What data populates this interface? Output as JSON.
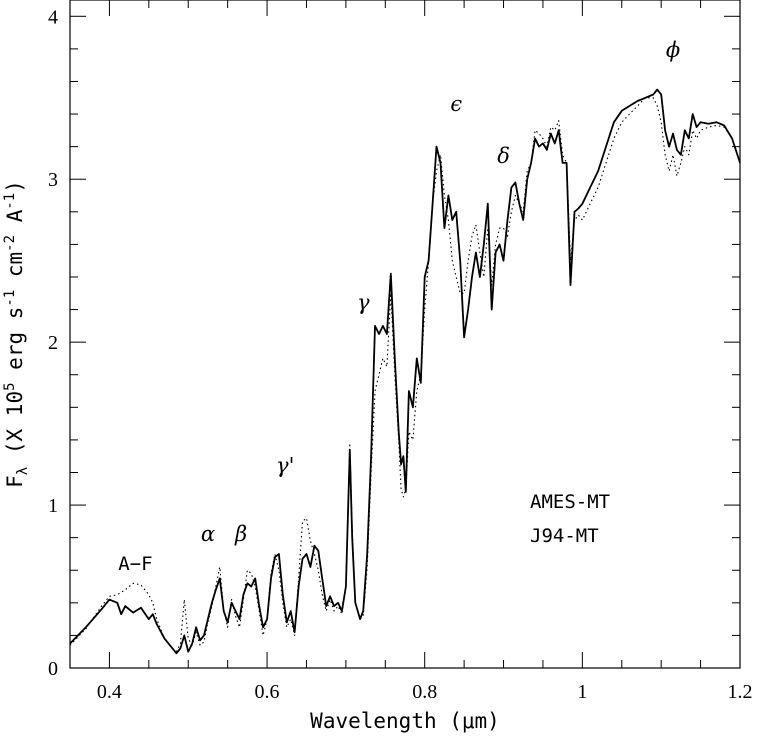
{
  "chart_data": {
    "type": "line",
    "xlabel": "Wavelength (μm)",
    "ylabel": "F",
    "ylabel_sub": "λ",
    "ylabel_rest": " (X 10",
    "ylabel_exp": "5",
    "ylabel_unit": " erg s",
    "ylabel_unit_exp1": "-1",
    "ylabel_unit2": " cm",
    "ylabel_unit_exp2": "-2",
    "ylabel_unit3": " A",
    "ylabel_unit_exp3": "-1",
    "ylabel_close": ")",
    "xlim": [
      0.35,
      1.2
    ],
    "ylim": [
      0,
      4.1
    ],
    "x_ticks": [
      0.4,
      0.6,
      0.8,
      1.0,
      1.2
    ],
    "x_tick_labels": [
      "0.4",
      "0.6",
      "0.8",
      "1",
      "1.2"
    ],
    "y_ticks": [
      0,
      1,
      2,
      3,
      4
    ],
    "y_tick_labels": [
      "0",
      "1",
      "2",
      "3",
      "4"
    ],
    "legend_position": "right-middle",
    "series": [
      {
        "name": "AMES-MT",
        "style": "solid",
        "color": "#000000",
        "points": [
          [
            0.35,
            0.15
          ],
          [
            0.37,
            0.25
          ],
          [
            0.39,
            0.36
          ],
          [
            0.4,
            0.42
          ],
          [
            0.41,
            0.4
          ],
          [
            0.415,
            0.33
          ],
          [
            0.42,
            0.38
          ],
          [
            0.43,
            0.34
          ],
          [
            0.44,
            0.37
          ],
          [
            0.45,
            0.3
          ],
          [
            0.455,
            0.33
          ],
          [
            0.46,
            0.27
          ],
          [
            0.47,
            0.18
          ],
          [
            0.48,
            0.12
          ],
          [
            0.485,
            0.09
          ],
          [
            0.49,
            0.12
          ],
          [
            0.495,
            0.2
          ],
          [
            0.5,
            0.1
          ],
          [
            0.505,
            0.15
          ],
          [
            0.51,
            0.25
          ],
          [
            0.515,
            0.17
          ],
          [
            0.52,
            0.2
          ],
          [
            0.525,
            0.3
          ],
          [
            0.53,
            0.4
          ],
          [
            0.535,
            0.48
          ],
          [
            0.54,
            0.55
          ],
          [
            0.545,
            0.35
          ],
          [
            0.55,
            0.28
          ],
          [
            0.555,
            0.4
          ],
          [
            0.56,
            0.35
          ],
          [
            0.565,
            0.3
          ],
          [
            0.57,
            0.45
          ],
          [
            0.575,
            0.52
          ],
          [
            0.58,
            0.5
          ],
          [
            0.585,
            0.55
          ],
          [
            0.59,
            0.38
          ],
          [
            0.595,
            0.25
          ],
          [
            0.6,
            0.3
          ],
          [
            0.605,
            0.55
          ],
          [
            0.61,
            0.68
          ],
          [
            0.615,
            0.7
          ],
          [
            0.62,
            0.45
          ],
          [
            0.625,
            0.28
          ],
          [
            0.63,
            0.35
          ],
          [
            0.635,
            0.22
          ],
          [
            0.64,
            0.5
          ],
          [
            0.645,
            0.67
          ],
          [
            0.65,
            0.7
          ],
          [
            0.655,
            0.62
          ],
          [
            0.66,
            0.75
          ],
          [
            0.665,
            0.72
          ],
          [
            0.67,
            0.55
          ],
          [
            0.675,
            0.38
          ],
          [
            0.68,
            0.44
          ],
          [
            0.685,
            0.38
          ],
          [
            0.69,
            0.4
          ],
          [
            0.695,
            0.35
          ],
          [
            0.7,
            0.5
          ],
          [
            0.705,
            1.34
          ],
          [
            0.708,
            0.8
          ],
          [
            0.712,
            0.4
          ],
          [
            0.718,
            0.3
          ],
          [
            0.722,
            0.35
          ],
          [
            0.727,
            0.7
          ],
          [
            0.732,
            1.3
          ],
          [
            0.737,
            2.1
          ],
          [
            0.742,
            2.05
          ],
          [
            0.747,
            2.1
          ],
          [
            0.752,
            2.05
          ],
          [
            0.757,
            2.42
          ],
          [
            0.762,
            1.9
          ],
          [
            0.767,
            1.45
          ],
          [
            0.77,
            1.25
          ],
          [
            0.773,
            1.3
          ],
          [
            0.776,
            1.08
          ],
          [
            0.78,
            1.7
          ],
          [
            0.785,
            1.6
          ],
          [
            0.79,
            1.9
          ],
          [
            0.795,
            1.75
          ],
          [
            0.8,
            2.4
          ],
          [
            0.805,
            2.5
          ],
          [
            0.81,
            2.85
          ],
          [
            0.815,
            3.2
          ],
          [
            0.82,
            3.1
          ],
          [
            0.825,
            2.7
          ],
          [
            0.83,
            2.9
          ],
          [
            0.835,
            2.75
          ],
          [
            0.84,
            2.8
          ],
          [
            0.845,
            2.5
          ],
          [
            0.85,
            2.03
          ],
          [
            0.855,
            2.2
          ],
          [
            0.86,
            2.4
          ],
          [
            0.865,
            2.55
          ],
          [
            0.87,
            2.4
          ],
          [
            0.875,
            2.6
          ],
          [
            0.88,
            2.85
          ],
          [
            0.885,
            2.2
          ],
          [
            0.89,
            2.55
          ],
          [
            0.895,
            2.6
          ],
          [
            0.9,
            2.5
          ],
          [
            0.905,
            2.75
          ],
          [
            0.91,
            2.95
          ],
          [
            0.915,
            2.98
          ],
          [
            0.92,
            2.85
          ],
          [
            0.925,
            2.75
          ],
          [
            0.93,
            3.0
          ],
          [
            0.935,
            3.1
          ],
          [
            0.94,
            3.25
          ],
          [
            0.945,
            3.2
          ],
          [
            0.95,
            3.22
          ],
          [
            0.955,
            3.18
          ],
          [
            0.96,
            3.28
          ],
          [
            0.965,
            3.22
          ],
          [
            0.97,
            3.3
          ],
          [
            0.975,
            3.1
          ],
          [
            0.98,
            3.1
          ],
          [
            0.985,
            2.35
          ],
          [
            0.99,
            2.8
          ],
          [
            0.995,
            2.82
          ],
          [
            1.0,
            2.85
          ],
          [
            1.01,
            2.95
          ],
          [
            1.02,
            3.05
          ],
          [
            1.03,
            3.2
          ],
          [
            1.04,
            3.35
          ],
          [
            1.05,
            3.42
          ],
          [
            1.06,
            3.45
          ],
          [
            1.07,
            3.48
          ],
          [
            1.08,
            3.5
          ],
          [
            1.09,
            3.52
          ],
          [
            1.095,
            3.55
          ],
          [
            1.1,
            3.52
          ],
          [
            1.105,
            3.3
          ],
          [
            1.11,
            3.2
          ],
          [
            1.115,
            3.28
          ],
          [
            1.12,
            3.18
          ],
          [
            1.125,
            3.15
          ],
          [
            1.13,
            3.3
          ],
          [
            1.135,
            3.25
          ],
          [
            1.14,
            3.4
          ],
          [
            1.145,
            3.32
          ],
          [
            1.15,
            3.35
          ],
          [
            1.16,
            3.34
          ],
          [
            1.17,
            3.35
          ],
          [
            1.18,
            3.33
          ],
          [
            1.19,
            3.25
          ],
          [
            1.2,
            3.1
          ]
        ]
      },
      {
        "name": "J94-MT",
        "style": "dotted",
        "color": "#000000",
        "points": [
          [
            0.35,
            0.14
          ],
          [
            0.37,
            0.24
          ],
          [
            0.39,
            0.38
          ],
          [
            0.4,
            0.44
          ],
          [
            0.41,
            0.45
          ],
          [
            0.42,
            0.48
          ],
          [
            0.43,
            0.52
          ],
          [
            0.44,
            0.51
          ],
          [
            0.45,
            0.45
          ],
          [
            0.455,
            0.4
          ],
          [
            0.46,
            0.3
          ],
          [
            0.47,
            0.18
          ],
          [
            0.48,
            0.12
          ],
          [
            0.485,
            0.1
          ],
          [
            0.49,
            0.15
          ],
          [
            0.495,
            0.42
          ],
          [
            0.5,
            0.18
          ],
          [
            0.505,
            0.14
          ],
          [
            0.51,
            0.22
          ],
          [
            0.515,
            0.14
          ],
          [
            0.52,
            0.16
          ],
          [
            0.525,
            0.28
          ],
          [
            0.53,
            0.38
          ],
          [
            0.535,
            0.5
          ],
          [
            0.54,
            0.62
          ],
          [
            0.545,
            0.36
          ],
          [
            0.55,
            0.25
          ],
          [
            0.555,
            0.42
          ],
          [
            0.56,
            0.32
          ],
          [
            0.565,
            0.25
          ],
          [
            0.57,
            0.42
          ],
          [
            0.575,
            0.6
          ],
          [
            0.58,
            0.58
          ],
          [
            0.585,
            0.5
          ],
          [
            0.59,
            0.35
          ],
          [
            0.595,
            0.2
          ],
          [
            0.6,
            0.3
          ],
          [
            0.605,
            0.58
          ],
          [
            0.61,
            0.7
          ],
          [
            0.615,
            0.6
          ],
          [
            0.62,
            0.4
          ],
          [
            0.625,
            0.25
          ],
          [
            0.63,
            0.3
          ],
          [
            0.635,
            0.2
          ],
          [
            0.64,
            0.55
          ],
          [
            0.645,
            0.9
          ],
          [
            0.65,
            0.92
          ],
          [
            0.655,
            0.78
          ],
          [
            0.66,
            0.7
          ],
          [
            0.665,
            0.6
          ],
          [
            0.67,
            0.45
          ],
          [
            0.675,
            0.35
          ],
          [
            0.68,
            0.42
          ],
          [
            0.685,
            0.35
          ],
          [
            0.69,
            0.38
          ],
          [
            0.695,
            0.33
          ],
          [
            0.7,
            0.5
          ],
          [
            0.705,
            1.38
          ],
          [
            0.708,
            0.85
          ],
          [
            0.712,
            0.4
          ],
          [
            0.718,
            0.3
          ],
          [
            0.722,
            0.32
          ],
          [
            0.727,
            0.62
          ],
          [
            0.732,
            1.2
          ],
          [
            0.737,
            1.7
          ],
          [
            0.742,
            1.8
          ],
          [
            0.747,
            1.9
          ],
          [
            0.752,
            1.85
          ],
          [
            0.757,
            2.3
          ],
          [
            0.762,
            1.8
          ],
          [
            0.767,
            1.4
          ],
          [
            0.77,
            1.1
          ],
          [
            0.773,
            1.05
          ],
          [
            0.776,
            1.1
          ],
          [
            0.78,
            1.45
          ],
          [
            0.785,
            1.4
          ],
          [
            0.79,
            1.7
          ],
          [
            0.795,
            1.8
          ],
          [
            0.8,
            2.2
          ],
          [
            0.805,
            2.5
          ],
          [
            0.81,
            2.85
          ],
          [
            0.815,
            3.05
          ],
          [
            0.82,
            3.15
          ],
          [
            0.825,
            2.9
          ],
          [
            0.83,
            2.75
          ],
          [
            0.835,
            2.5
          ],
          [
            0.84,
            2.4
          ],
          [
            0.845,
            2.3
          ],
          [
            0.85,
            2.3
          ],
          [
            0.855,
            2.5
          ],
          [
            0.86,
            2.65
          ],
          [
            0.865,
            2.72
          ],
          [
            0.87,
            2.55
          ],
          [
            0.875,
            2.4
          ],
          [
            0.88,
            2.7
          ],
          [
            0.885,
            2.35
          ],
          [
            0.89,
            2.6
          ],
          [
            0.895,
            2.7
          ],
          [
            0.9,
            2.7
          ],
          [
            0.905,
            2.65
          ],
          [
            0.91,
            2.8
          ],
          [
            0.915,
            2.9
          ],
          [
            0.92,
            2.85
          ],
          [
            0.925,
            2.8
          ],
          [
            0.93,
            3.05
          ],
          [
            0.935,
            3.1
          ],
          [
            0.94,
            3.3
          ],
          [
            0.945,
            3.28
          ],
          [
            0.95,
            3.25
          ],
          [
            0.955,
            3.2
          ],
          [
            0.96,
            3.32
          ],
          [
            0.965,
            3.3
          ],
          [
            0.97,
            3.36
          ],
          [
            0.975,
            3.15
          ],
          [
            0.98,
            3.1
          ],
          [
            0.985,
            2.5
          ],
          [
            0.99,
            2.75
          ],
          [
            0.995,
            2.78
          ],
          [
            1.0,
            2.75
          ],
          [
            1.01,
            2.85
          ],
          [
            1.02,
            2.95
          ],
          [
            1.03,
            3.1
          ],
          [
            1.04,
            3.25
          ],
          [
            1.05,
            3.35
          ],
          [
            1.06,
            3.4
          ],
          [
            1.07,
            3.45
          ],
          [
            1.08,
            3.5
          ],
          [
            1.09,
            3.5
          ],
          [
            1.095,
            3.45
          ],
          [
            1.1,
            3.35
          ],
          [
            1.105,
            3.15
          ],
          [
            1.11,
            3.05
          ],
          [
            1.115,
            3.15
          ],
          [
            1.12,
            3.02
          ],
          [
            1.125,
            3.1
          ],
          [
            1.13,
            3.2
          ],
          [
            1.135,
            3.15
          ],
          [
            1.14,
            3.3
          ],
          [
            1.145,
            3.25
          ],
          [
            1.15,
            3.3
          ],
          [
            1.16,
            3.32
          ],
          [
            1.17,
            3.33
          ],
          [
            1.18,
            3.32
          ],
          [
            1.19,
            3.25
          ],
          [
            1.2,
            3.1
          ]
        ]
      }
    ],
    "annotations": [
      {
        "text": "A−F",
        "x": 0.433,
        "y": 0.6,
        "style": "plain"
      },
      {
        "text": "α",
        "x": 0.525,
        "y": 0.78,
        "style": "italic"
      },
      {
        "text": "β",
        "x": 0.567,
        "y": 0.78,
        "style": "italic"
      },
      {
        "text": "γ'",
        "x": 0.623,
        "y": 1.2,
        "style": "italic"
      },
      {
        "text": "γ",
        "x": 0.722,
        "y": 2.2,
        "style": "italic"
      },
      {
        "text": "ϵ",
        "x": 0.84,
        "y": 3.42,
        "style": "italic"
      },
      {
        "text": "δ",
        "x": 0.9,
        "y": 3.1,
        "style": "italic"
      },
      {
        "text": "ϕ",
        "x": 1.115,
        "y": 3.75,
        "style": "italic"
      }
    ]
  }
}
